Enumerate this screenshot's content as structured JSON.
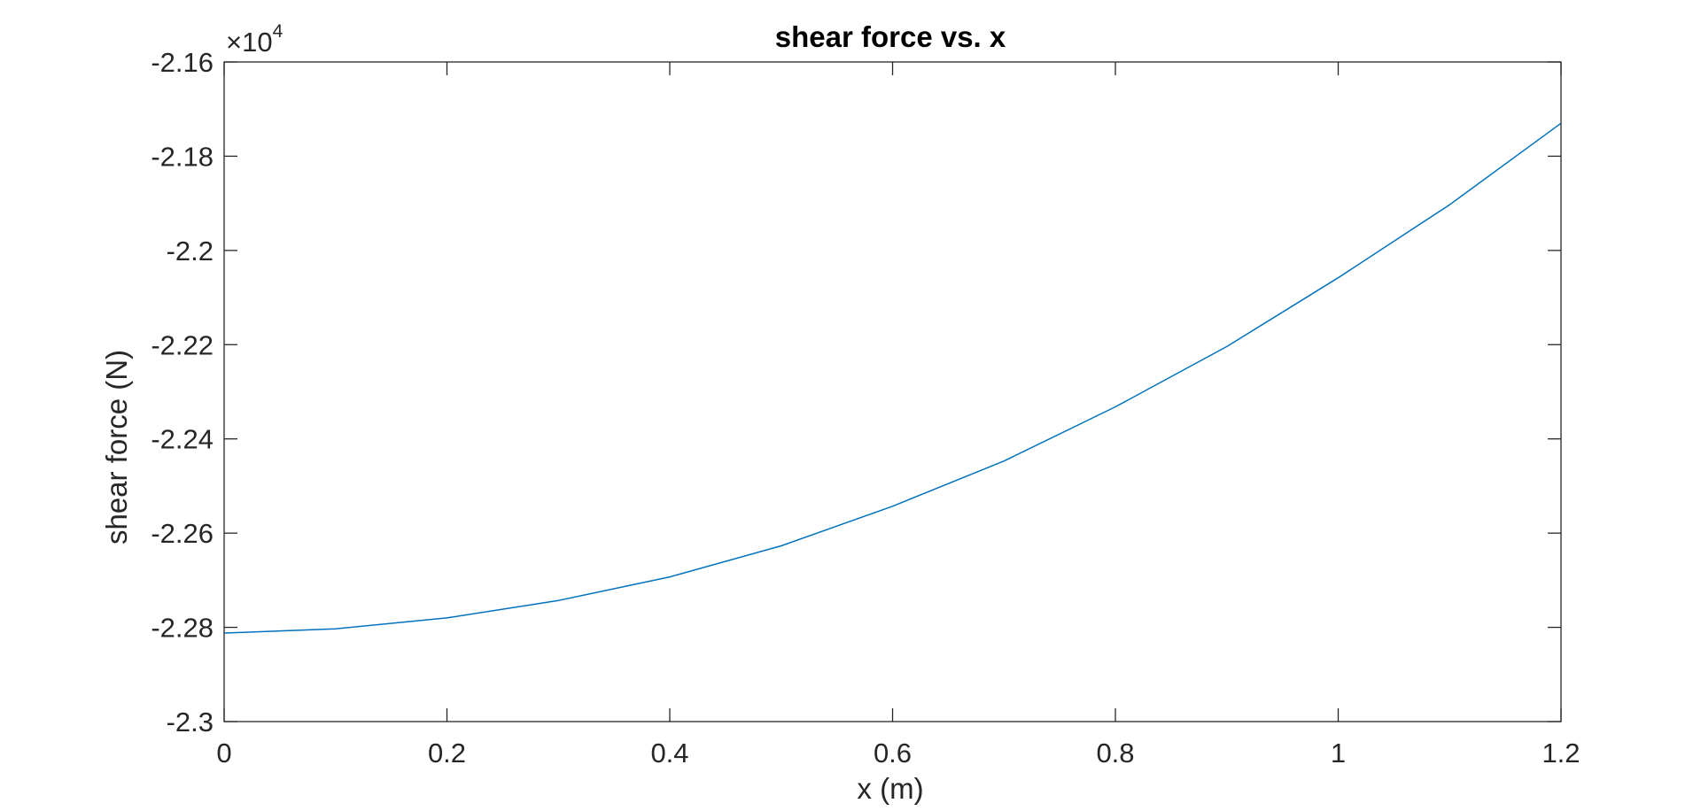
{
  "chart_data": {
    "type": "line",
    "title": "shear force vs. x",
    "xlabel": "x (m)",
    "ylabel": "shear force (N)",
    "xlim": [
      0,
      1.2
    ],
    "ylim": [
      -23000,
      -21600
    ],
    "y_multiplier": {
      "base": "10",
      "exponent": "4",
      "prefix": "×"
    },
    "grid": false,
    "box": true,
    "xticks": [
      0,
      0.2,
      0.4,
      0.6,
      0.8,
      1.0,
      1.2
    ],
    "xtick_labels": [
      "0",
      "0.2",
      "0.4",
      "0.6",
      "0.8",
      "1",
      "1.2"
    ],
    "yticks": [
      -23000,
      -22800,
      -22600,
      -22400,
      -22200,
      -22000,
      -21800,
      -21600
    ],
    "ytick_labels": [
      "-2.3",
      "-2.28",
      "-2.26",
      "-2.24",
      "-2.22",
      "-2.2",
      "-2.18",
      "-2.16"
    ],
    "series": [
      {
        "color": "#0072BD",
        "x": [
          0,
          0.1,
          0.2,
          0.3,
          0.4,
          0.5,
          0.6,
          0.7,
          0.8,
          0.9,
          1.0,
          1.1,
          1.2
        ],
        "y": [
          -22812,
          -22803,
          -22780,
          -22743,
          -22693,
          -22627,
          -22543,
          -22447,
          -22332,
          -22204,
          -22058,
          -21903,
          -21730
        ]
      }
    ]
  }
}
